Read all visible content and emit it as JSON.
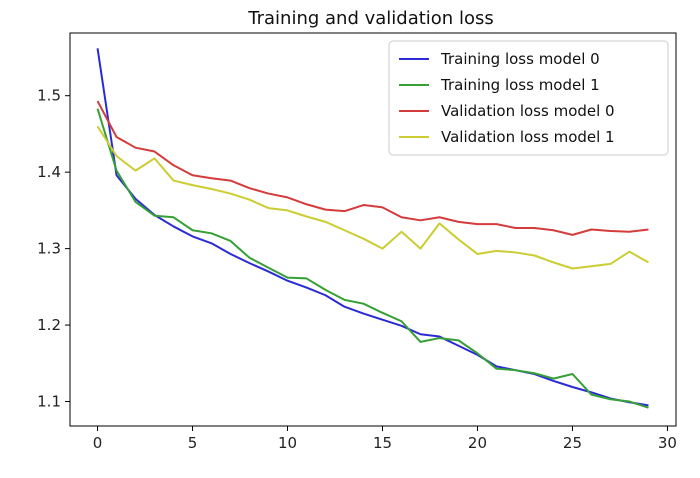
{
  "chart_data": {
    "type": "line",
    "title": "Training and validation loss",
    "xlabel": "",
    "ylabel": "",
    "xlim": [
      -1.45,
      30.45
    ],
    "ylim": [
      1.068,
      1.582
    ],
    "xticks": [
      0,
      5,
      10,
      15,
      20,
      25,
      30
    ],
    "yticks": [
      1.1,
      1.2,
      1.3,
      1.4,
      1.5
    ],
    "legend_position": "top-right",
    "grid": false,
    "x": [
      0,
      1,
      2,
      3,
      4,
      5,
      6,
      7,
      8,
      9,
      10,
      11,
      12,
      13,
      14,
      15,
      16,
      17,
      18,
      19,
      20,
      21,
      22,
      23,
      24,
      25,
      26,
      27,
      28,
      29
    ],
    "series": [
      {
        "name": "Training loss model 0",
        "color": "#2b2bd6",
        "values": [
          1.562,
          1.396,
          1.365,
          1.344,
          1.329,
          1.316,
          1.307,
          1.293,
          1.281,
          1.27,
          1.258,
          1.249,
          1.239,
          1.224,
          1.215,
          1.207,
          1.199,
          1.188,
          1.185,
          1.173,
          1.161,
          1.146,
          1.141,
          1.136,
          1.127,
          1.119,
          1.112,
          1.104,
          1.099,
          1.095
        ]
      },
      {
        "name": "Training loss model 1",
        "color": "#35a035",
        "values": [
          1.483,
          1.402,
          1.361,
          1.343,
          1.341,
          1.324,
          1.32,
          1.31,
          1.288,
          1.275,
          1.262,
          1.261,
          1.246,
          1.233,
          1.228,
          1.216,
          1.205,
          1.178,
          1.183,
          1.18,
          1.163,
          1.143,
          1.141,
          1.137,
          1.13,
          1.136,
          1.109,
          1.103,
          1.1,
          1.092
        ]
      },
      {
        "name": "Validation loss model 0",
        "color": "#d43b3b",
        "values": [
          1.493,
          1.446,
          1.432,
          1.427,
          1.409,
          1.396,
          1.392,
          1.389,
          1.379,
          1.372,
          1.367,
          1.358,
          1.351,
          1.349,
          1.357,
          1.354,
          1.341,
          1.337,
          1.341,
          1.335,
          1.332,
          1.332,
          1.327,
          1.327,
          1.324,
          1.318,
          1.325,
          1.323,
          1.322,
          1.325
        ]
      },
      {
        "name": "Validation loss model 1",
        "color": "#cccc33",
        "values": [
          1.46,
          1.421,
          1.402,
          1.418,
          1.389,
          1.383,
          1.378,
          1.372,
          1.364,
          1.353,
          1.35,
          1.342,
          1.335,
          1.324,
          1.313,
          1.3,
          1.322,
          1.3,
          1.333,
          1.312,
          1.293,
          1.297,
          1.295,
          1.291,
          1.282,
          1.274,
          1.277,
          1.28,
          1.296,
          1.282
        ]
      }
    ]
  }
}
